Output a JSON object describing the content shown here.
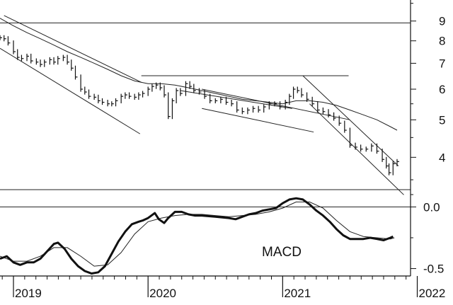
{
  "chart_data": [
    {
      "type": "line",
      "panel": "price",
      "scale": "log",
      "ylim": [
        3.3,
        10.2
      ],
      "x_range": [
        2018.9,
        2021.95
      ],
      "y_ticks": [
        {
          "value": 9,
          "label": "9"
        },
        {
          "value": 8,
          "label": "8"
        },
        {
          "value": 7,
          "label": "7"
        },
        {
          "value": 6,
          "label": "6"
        },
        {
          "value": 5,
          "label": "5"
        },
        {
          "value": 4,
          "label": "4"
        }
      ],
      "reference_level": 8.9,
      "price": [
        [
          2018.9,
          8.15
        ],
        [
          2018.93,
          8.1
        ],
        [
          2018.96,
          7.9
        ],
        [
          2019.0,
          7.5
        ],
        [
          2019.03,
          7.25
        ],
        [
          2019.06,
          7.2
        ],
        [
          2019.1,
          7.3
        ],
        [
          2019.13,
          7.1
        ],
        [
          2019.17,
          7.05
        ],
        [
          2019.2,
          6.95
        ],
        [
          2019.23,
          7.05
        ],
        [
          2019.27,
          7.15
        ],
        [
          2019.3,
          7.05
        ],
        [
          2019.33,
          7.2
        ],
        [
          2019.37,
          7.25
        ],
        [
          2019.4,
          7.05
        ],
        [
          2019.43,
          6.8
        ],
        [
          2019.46,
          6.45
        ],
        [
          2019.5,
          6.0
        ],
        [
          2019.53,
          5.9
        ],
        [
          2019.56,
          5.75
        ],
        [
          2019.6,
          5.72
        ],
        [
          2019.63,
          5.6
        ],
        [
          2019.66,
          5.55
        ],
        [
          2019.7,
          5.5
        ],
        [
          2019.73,
          5.5
        ],
        [
          2019.76,
          5.6
        ],
        [
          2019.8,
          5.75
        ],
        [
          2019.83,
          5.8
        ],
        [
          2019.86,
          5.75
        ],
        [
          2019.9,
          5.72
        ],
        [
          2019.93,
          5.8
        ],
        [
          2019.96,
          5.85
        ],
        [
          2020.0,
          6.0
        ],
        [
          2020.03,
          6.1
        ],
        [
          2020.06,
          6.15
        ],
        [
          2020.09,
          6.05
        ],
        [
          2020.12,
          5.8
        ],
        [
          2020.15,
          5.1
        ],
        [
          2020.18,
          5.6
        ],
        [
          2020.21,
          5.95
        ],
        [
          2020.24,
          5.85
        ],
        [
          2020.28,
          6.2
        ],
        [
          2020.31,
          6.1
        ],
        [
          2020.34,
          5.95
        ],
        [
          2020.38,
          5.9
        ],
        [
          2020.42,
          5.75
        ],
        [
          2020.46,
          5.6
        ],
        [
          2020.5,
          5.6
        ],
        [
          2020.54,
          5.65
        ],
        [
          2020.58,
          5.55
        ],
        [
          2020.62,
          5.5
        ],
        [
          2020.66,
          5.3
        ],
        [
          2020.7,
          5.25
        ],
        [
          2020.74,
          5.3
        ],
        [
          2020.78,
          5.35
        ],
        [
          2020.82,
          5.3
        ],
        [
          2020.86,
          5.4
        ],
        [
          2020.9,
          5.5
        ],
        [
          2020.94,
          5.5
        ],
        [
          2020.98,
          5.4
        ],
        [
          2021.02,
          5.55
        ],
        [
          2021.05,
          5.75
        ],
        [
          2021.08,
          6.0
        ],
        [
          2021.11,
          5.95
        ],
        [
          2021.14,
          5.8
        ],
        [
          2021.18,
          5.65
        ],
        [
          2021.22,
          5.5
        ],
        [
          2021.26,
          5.3
        ],
        [
          2021.3,
          5.25
        ],
        [
          2021.34,
          5.15
        ],
        [
          2021.38,
          5.05
        ],
        [
          2021.42,
          4.9
        ],
        [
          2021.46,
          4.7
        ],
        [
          2021.5,
          4.3
        ],
        [
          2021.54,
          4.25
        ],
        [
          2021.58,
          4.2
        ],
        [
          2021.62,
          4.2
        ],
        [
          2021.66,
          4.28
        ],
        [
          2021.7,
          4.15
        ],
        [
          2021.74,
          3.95
        ],
        [
          2021.77,
          3.8
        ],
        [
          2021.79,
          3.65
        ],
        [
          2021.82,
          3.85
        ],
        [
          2021.85,
          3.9
        ]
      ],
      "moving_average": [
        [
          2018.9,
          9.15
        ],
        [
          2019.0,
          8.75
        ],
        [
          2019.1,
          8.4
        ],
        [
          2019.2,
          8.1
        ],
        [
          2019.3,
          7.8
        ],
        [
          2019.4,
          7.5
        ],
        [
          2019.5,
          7.25
        ],
        [
          2019.6,
          7.0
        ],
        [
          2019.7,
          6.75
        ],
        [
          2019.8,
          6.5
        ],
        [
          2019.9,
          6.3
        ],
        [
          2020.0,
          6.2
        ],
        [
          2020.1,
          6.2
        ],
        [
          2020.2,
          6.15
        ],
        [
          2020.3,
          6.05
        ],
        [
          2020.4,
          5.95
        ],
        [
          2020.5,
          5.85
        ],
        [
          2020.6,
          5.75
        ],
        [
          2020.7,
          5.65
        ],
        [
          2020.8,
          5.6
        ],
        [
          2020.9,
          5.55
        ],
        [
          2021.0,
          5.5
        ],
        [
          2021.1,
          5.6
        ],
        [
          2021.2,
          5.6
        ],
        [
          2021.3,
          5.55
        ],
        [
          2021.4,
          5.45
        ],
        [
          2021.5,
          5.3
        ],
        [
          2021.6,
          5.15
        ],
        [
          2021.7,
          5.0
        ],
        [
          2021.8,
          4.8
        ],
        [
          2021.85,
          4.7
        ]
      ],
      "trend_lines": [
        {
          "from": [
            2018.9,
            7.65
          ],
          "to": [
            2019.94,
            4.6
          ]
        },
        {
          "from": [
            2018.93,
            9.3
          ],
          "to": [
            2019.95,
            6.25
          ]
        },
        {
          "from": [
            2019.95,
            6.5
          ],
          "to": [
            2021.49,
            6.5
          ]
        },
        {
          "from": [
            2020.24,
            5.95
          ],
          "to": [
            2021.07,
            5.35
          ]
        },
        {
          "from": [
            2020.4,
            5.35
          ],
          "to": [
            2021.23,
            4.65
          ]
        },
        {
          "from": [
            2020.4,
            6.0
          ],
          "to": [
            2021.5,
            5.0
          ]
        },
        {
          "from": [
            2021.15,
            6.5
          ],
          "to": [
            2021.86,
            3.8
          ]
        },
        {
          "from": [
            2021.2,
            5.5
          ],
          "to": [
            2021.9,
            3.2
          ]
        }
      ]
    },
    {
      "type": "line",
      "panel": "indicator",
      "ylim": [
        -0.56,
        0.14
      ],
      "y_ticks": [
        {
          "value": 0.0,
          "label": "0.0"
        },
        {
          "value": -0.5,
          "label": "-0.5"
        }
      ],
      "indicator_label": "MACD",
      "upper_level": 0.14,
      "x_ticks": [
        {
          "value": 2019.0,
          "label": "2019"
        },
        {
          "value": 2020.0,
          "label": "2020"
        },
        {
          "value": 2021.0,
          "label": "2021"
        },
        {
          "value": 2022.0,
          "label": "2022"
        }
      ],
      "macd": [
        [
          2018.9,
          -0.42
        ],
        [
          2018.95,
          -0.4
        ],
        [
          2019.0,
          -0.45
        ],
        [
          2019.05,
          -0.47
        ],
        [
          2019.1,
          -0.45
        ],
        [
          2019.15,
          -0.45
        ],
        [
          2019.2,
          -0.42
        ],
        [
          2019.25,
          -0.36
        ],
        [
          2019.3,
          -0.3
        ],
        [
          2019.33,
          -0.29
        ],
        [
          2019.38,
          -0.34
        ],
        [
          2019.43,
          -0.42
        ],
        [
          2019.48,
          -0.48
        ],
        [
          2019.53,
          -0.52
        ],
        [
          2019.58,
          -0.54
        ],
        [
          2019.63,
          -0.53
        ],
        [
          2019.68,
          -0.48
        ],
        [
          2019.73,
          -0.38
        ],
        [
          2019.78,
          -0.28
        ],
        [
          2019.83,
          -0.2
        ],
        [
          2019.88,
          -0.14
        ],
        [
          2019.93,
          -0.12
        ],
        [
          2019.96,
          -0.11
        ],
        [
          2020.0,
          -0.09
        ],
        [
          2020.05,
          -0.05
        ],
        [
          2020.08,
          -0.1
        ],
        [
          2020.12,
          -0.13
        ],
        [
          2020.15,
          -0.09
        ],
        [
          2020.2,
          -0.04
        ],
        [
          2020.25,
          -0.04
        ],
        [
          2020.3,
          -0.06
        ],
        [
          2020.35,
          -0.07
        ],
        [
          2020.4,
          -0.07
        ],
        [
          2020.5,
          -0.08
        ],
        [
          2020.6,
          -0.09
        ],
        [
          2020.65,
          -0.1
        ],
        [
          2020.7,
          -0.08
        ],
        [
          2020.75,
          -0.06
        ],
        [
          2020.8,
          -0.05
        ],
        [
          2020.85,
          -0.03
        ],
        [
          2020.9,
          -0.02
        ],
        [
          2020.95,
          -0.01
        ],
        [
          2021.0,
          0.03
        ],
        [
          2021.05,
          0.06
        ],
        [
          2021.1,
          0.07
        ],
        [
          2021.15,
          0.06
        ],
        [
          2021.2,
          0.02
        ],
        [
          2021.25,
          -0.03
        ],
        [
          2021.3,
          -0.07
        ],
        [
          2021.35,
          -0.12
        ],
        [
          2021.4,
          -0.18
        ],
        [
          2021.45,
          -0.23
        ],
        [
          2021.5,
          -0.26
        ],
        [
          2021.55,
          -0.26
        ],
        [
          2021.6,
          -0.26
        ],
        [
          2021.65,
          -0.25
        ],
        [
          2021.7,
          -0.26
        ],
        [
          2021.75,
          -0.27
        ],
        [
          2021.8,
          -0.25
        ],
        [
          2021.82,
          -0.24
        ]
      ],
      "signal": [
        [
          2018.9,
          -0.4
        ],
        [
          2019.0,
          -0.44
        ],
        [
          2019.1,
          -0.44
        ],
        [
          2019.2,
          -0.4
        ],
        [
          2019.3,
          -0.33
        ],
        [
          2019.4,
          -0.33
        ],
        [
          2019.5,
          -0.4
        ],
        [
          2019.6,
          -0.48
        ],
        [
          2019.7,
          -0.47
        ],
        [
          2019.8,
          -0.37
        ],
        [
          2019.9,
          -0.22
        ],
        [
          2020.0,
          -0.12
        ],
        [
          2020.1,
          -0.09
        ],
        [
          2020.2,
          -0.07
        ],
        [
          2020.3,
          -0.06
        ],
        [
          2020.4,
          -0.06
        ],
        [
          2020.5,
          -0.07
        ],
        [
          2020.6,
          -0.08
        ],
        [
          2020.7,
          -0.07
        ],
        [
          2020.8,
          -0.06
        ],
        [
          2020.9,
          -0.04
        ],
        [
          2021.0,
          -0.01
        ],
        [
          2021.1,
          0.04
        ],
        [
          2021.2,
          0.04
        ],
        [
          2021.3,
          -0.01
        ],
        [
          2021.4,
          -0.11
        ],
        [
          2021.5,
          -0.2
        ],
        [
          2021.6,
          -0.24
        ],
        [
          2021.7,
          -0.25
        ],
        [
          2021.8,
          -0.26
        ],
        [
          2021.83,
          -0.25
        ]
      ]
    }
  ]
}
